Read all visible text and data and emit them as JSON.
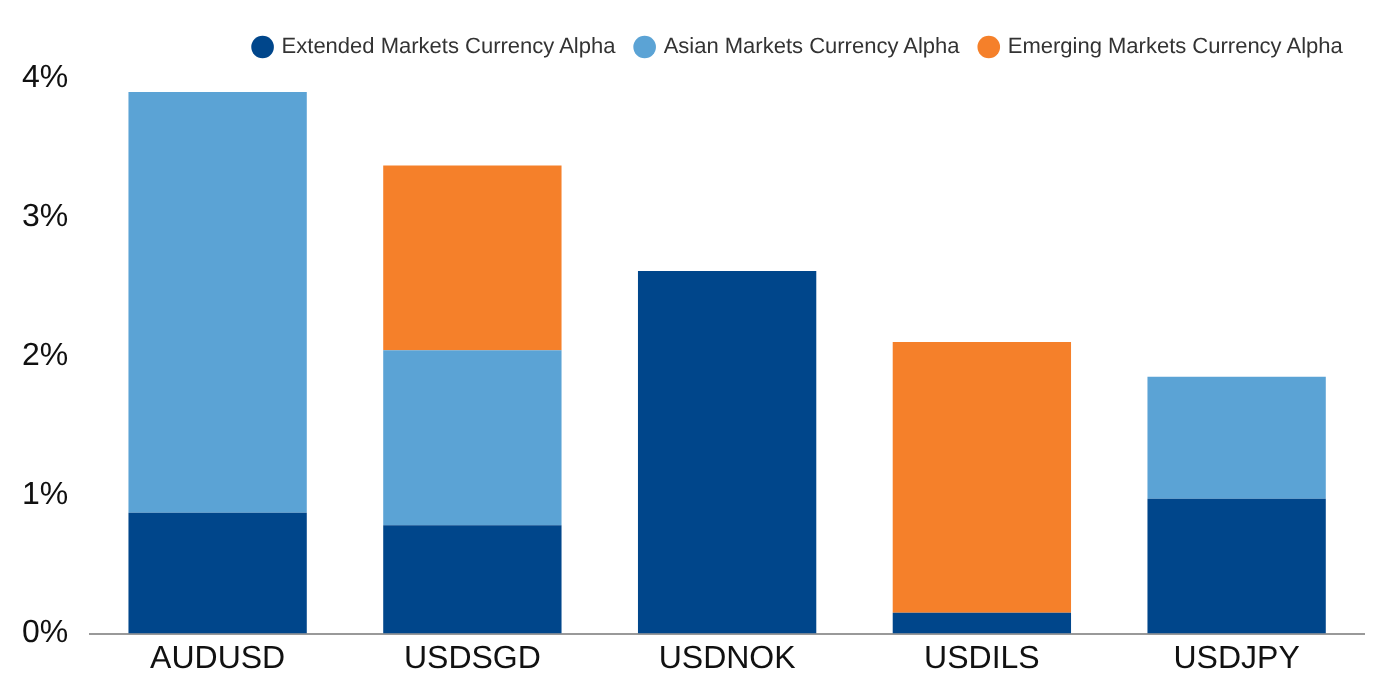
{
  "chart_data": {
    "type": "bar",
    "stacked": true,
    "categories": [
      "AUDUSD",
      "USDSGD",
      "USDNOK",
      "USDILS",
      "USDJPY"
    ],
    "series": [
      {
        "name": "Extended Markets Currency Alpha",
        "color": "#00468b",
        "values": [
          0.87,
          0.78,
          2.61,
          0.15,
          0.97
        ]
      },
      {
        "name": "Asian Markets Currency Alpha",
        "color": "#5ba3d5",
        "values": [
          3.03,
          1.26,
          null,
          null,
          0.88
        ]
      },
      {
        "name": "Emerging Markets Currency Alpha",
        "color": "#f5802a",
        "values": [
          null,
          1.33,
          null,
          1.95,
          null
        ]
      }
    ],
    "ylim": [
      0,
      4
    ],
    "yticks": [
      {
        "value": 0,
        "label": "0%"
      },
      {
        "value": 1,
        "label": "1%"
      },
      {
        "value": 2,
        "label": "2%"
      },
      {
        "value": 3,
        "label": "3%"
      },
      {
        "value": 4,
        "label": "4%"
      }
    ],
    "grid": false,
    "legend": "top right"
  }
}
